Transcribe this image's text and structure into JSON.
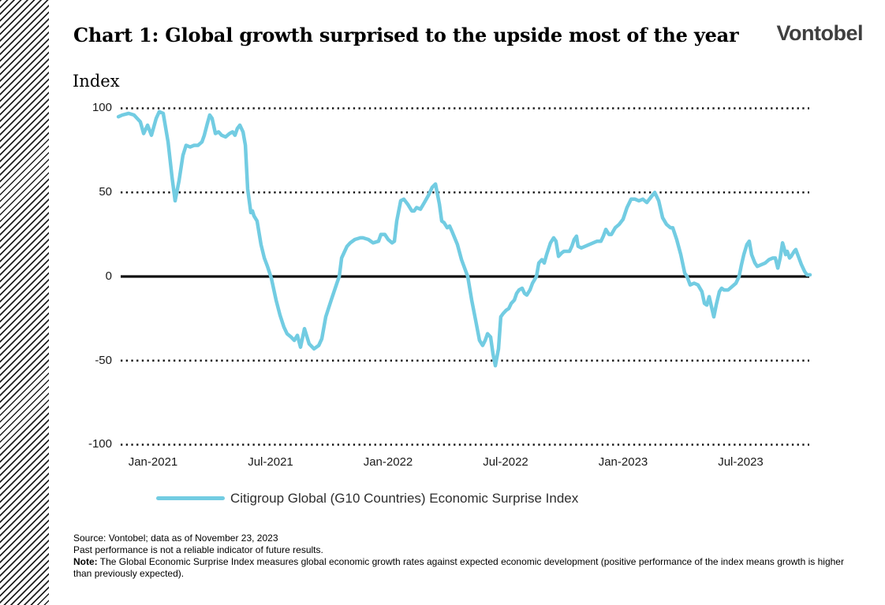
{
  "header": {
    "title": "Chart 1: Global growth surprised to the upside most of the year",
    "logo": "Vontobel",
    "logo_color": "#3f3f3f"
  },
  "chart_data": {
    "type": "line",
    "title": "Chart 1: Global growth surprised to the upside most of the year",
    "ylabel": "Index",
    "xlabel": "",
    "ylim": [
      -100,
      100
    ],
    "y_ticks": [
      "100",
      "50",
      "0",
      "-50",
      "-100"
    ],
    "y_tick_values": [
      100,
      50,
      0,
      -50,
      -100
    ],
    "x_ticks": [
      "Jan-2021",
      "Jul-2021",
      "Jan-2022",
      "Jul-2022",
      "Jan-2023",
      "Jul-2023"
    ],
    "x_tick_months": [
      0,
      6,
      12,
      18,
      24,
      30
    ],
    "x_unit": "months since Jan-2021 (decimal)",
    "grid": "horizontal dotted at 100, 50, -50, -100; solid black zero line",
    "legend_position": "bottom",
    "gridline_color": "#141414",
    "zero_line_color": "#111111",
    "series": [
      {
        "name": "Citigroup Global (G10 Countries) Economic Surprise Index",
        "color": "#72cce2",
        "points": [
          [
            -1.77,
            95
          ],
          [
            -1.57,
            96
          ],
          [
            -1.25,
            97
          ],
          [
            -0.97,
            96
          ],
          [
            -0.65,
            92
          ],
          [
            -0.48,
            85
          ],
          [
            -0.28,
            90
          ],
          [
            -0.08,
            84
          ],
          [
            0.16,
            94
          ],
          [
            0.32,
            98
          ],
          [
            0.52,
            97
          ],
          [
            0.77,
            80
          ],
          [
            0.97,
            59
          ],
          [
            1.13,
            45
          ],
          [
            1.33,
            57
          ],
          [
            1.53,
            72
          ],
          [
            1.69,
            78
          ],
          [
            1.9,
            77
          ],
          [
            2.1,
            78
          ],
          [
            2.3,
            78
          ],
          [
            2.5,
            80
          ],
          [
            2.62,
            84
          ],
          [
            2.78,
            91
          ],
          [
            2.9,
            96
          ],
          [
            3.02,
            94
          ],
          [
            3.19,
            85
          ],
          [
            3.35,
            86
          ],
          [
            3.51,
            84
          ],
          [
            3.71,
            83
          ],
          [
            3.91,
            85
          ],
          [
            4.07,
            86
          ],
          [
            4.19,
            84
          ],
          [
            4.31,
            88
          ],
          [
            4.44,
            90
          ],
          [
            4.6,
            86
          ],
          [
            4.72,
            78
          ],
          [
            4.84,
            52
          ],
          [
            5,
            38
          ],
          [
            5.08,
            39
          ],
          [
            5.16,
            36
          ],
          [
            5.32,
            33
          ],
          [
            5.52,
            19
          ],
          [
            5.69,
            11
          ],
          [
            5.85,
            6
          ],
          [
            6.05,
            -1
          ],
          [
            6.29,
            -14
          ],
          [
            6.49,
            -23
          ],
          [
            6.69,
            -30
          ],
          [
            6.85,
            -34
          ],
          [
            7.06,
            -36
          ],
          [
            7.22,
            -38
          ],
          [
            7.38,
            -35
          ],
          [
            7.54,
            -42
          ],
          [
            7.74,
            -31
          ],
          [
            7.98,
            -40
          ],
          [
            8.23,
            -43
          ],
          [
            8.47,
            -41
          ],
          [
            8.63,
            -37
          ],
          [
            8.83,
            -24
          ],
          [
            9.11,
            -14
          ],
          [
            9.4,
            -4
          ],
          [
            9.52,
            0
          ],
          [
            9.64,
            11
          ],
          [
            9.8,
            15
          ],
          [
            9.92,
            18
          ],
          [
            10.08,
            20
          ],
          [
            10.32,
            22
          ],
          [
            10.6,
            23
          ],
          [
            10.73,
            23
          ],
          [
            11.01,
            22
          ],
          [
            11.25,
            20
          ],
          [
            11.53,
            21
          ],
          [
            11.65,
            25
          ],
          [
            11.85,
            25
          ],
          [
            12.02,
            22
          ],
          [
            12.22,
            20
          ],
          [
            12.34,
            21
          ],
          [
            12.46,
            33
          ],
          [
            12.66,
            45
          ],
          [
            12.82,
            46
          ],
          [
            13.02,
            43
          ],
          [
            13.23,
            39
          ],
          [
            13.35,
            39
          ],
          [
            13.47,
            41
          ],
          [
            13.67,
            40
          ],
          [
            13.87,
            44
          ],
          [
            14.07,
            48
          ],
          [
            14.27,
            53
          ],
          [
            14.44,
            55
          ],
          [
            14.64,
            43
          ],
          [
            14.76,
            33
          ],
          [
            14.88,
            32
          ],
          [
            15.04,
            29
          ],
          [
            15.16,
            30
          ],
          [
            15.28,
            27
          ],
          [
            15.56,
            19
          ],
          [
            15.77,
            10
          ],
          [
            16.09,
            0
          ],
          [
            16.29,
            -14
          ],
          [
            16.49,
            -26
          ],
          [
            16.69,
            -38
          ],
          [
            16.85,
            -41
          ],
          [
            16.98,
            -38
          ],
          [
            17.1,
            -34
          ],
          [
            17.26,
            -36
          ],
          [
            17.38,
            -46
          ],
          [
            17.5,
            -53
          ],
          [
            17.66,
            -43
          ],
          [
            17.78,
            -24
          ],
          [
            17.9,
            -22
          ],
          [
            18.06,
            -20
          ],
          [
            18.19,
            -19
          ],
          [
            18.31,
            -16
          ],
          [
            18.47,
            -14
          ],
          [
            18.59,
            -10
          ],
          [
            18.71,
            -8
          ],
          [
            18.87,
            -7
          ],
          [
            18.99,
            -10
          ],
          [
            19.11,
            -11
          ],
          [
            19.27,
            -8
          ],
          [
            19.4,
            -4
          ],
          [
            19.6,
            0
          ],
          [
            19.72,
            8
          ],
          [
            19.88,
            10
          ],
          [
            20,
            8
          ],
          [
            20.12,
            13
          ],
          [
            20.32,
            20
          ],
          [
            20.48,
            23
          ],
          [
            20.6,
            21
          ],
          [
            20.73,
            12
          ],
          [
            20.89,
            14
          ],
          [
            21.01,
            15
          ],
          [
            21.13,
            15
          ],
          [
            21.29,
            15
          ],
          [
            21.41,
            18
          ],
          [
            21.53,
            22
          ],
          [
            21.65,
            24
          ],
          [
            21.73,
            18
          ],
          [
            21.9,
            17
          ],
          [
            22.1,
            18
          ],
          [
            22.3,
            19
          ],
          [
            22.5,
            20
          ],
          [
            22.7,
            21
          ],
          [
            22.9,
            21
          ],
          [
            23.02,
            24
          ],
          [
            23.15,
            28
          ],
          [
            23.31,
            25
          ],
          [
            23.43,
            25
          ],
          [
            23.63,
            29
          ],
          [
            23.83,
            31
          ],
          [
            24.03,
            34
          ],
          [
            24.23,
            41
          ],
          [
            24.44,
            46
          ],
          [
            24.64,
            46
          ],
          [
            24.84,
            45
          ],
          [
            25.04,
            46
          ],
          [
            25.24,
            44
          ],
          [
            25.44,
            47
          ],
          [
            25.65,
            50
          ],
          [
            25.85,
            45
          ],
          [
            26.05,
            35
          ],
          [
            26.25,
            31
          ],
          [
            26.45,
            29
          ],
          [
            26.57,
            29
          ],
          [
            26.77,
            22
          ],
          [
            26.98,
            13
          ],
          [
            27.18,
            2
          ],
          [
            27.3,
            0
          ],
          [
            27.46,
            -5
          ],
          [
            27.66,
            -4
          ],
          [
            27.86,
            -5
          ],
          [
            28.06,
            -9
          ],
          [
            28.19,
            -16
          ],
          [
            28.31,
            -17
          ],
          [
            28.43,
            -12
          ],
          [
            28.59,
            -20
          ],
          [
            28.67,
            -24
          ],
          [
            28.79,
            -17
          ],
          [
            28.95,
            -9
          ],
          [
            29.07,
            -7
          ],
          [
            29.19,
            -8
          ],
          [
            29.4,
            -8
          ],
          [
            29.6,
            -6
          ],
          [
            29.8,
            -4
          ],
          [
            29.96,
            0
          ],
          [
            30.08,
            7
          ],
          [
            30.2,
            13
          ],
          [
            30.36,
            19
          ],
          [
            30.48,
            21
          ],
          [
            30.6,
            13
          ],
          [
            30.77,
            8
          ],
          [
            30.89,
            6
          ],
          [
            31.09,
            7
          ],
          [
            31.29,
            8
          ],
          [
            31.49,
            10
          ],
          [
            31.69,
            11
          ],
          [
            31.81,
            11
          ],
          [
            31.94,
            5
          ],
          [
            32.06,
            11
          ],
          [
            32.18,
            20
          ],
          [
            32.26,
            17
          ],
          [
            32.34,
            13
          ],
          [
            32.42,
            15
          ],
          [
            32.54,
            11
          ],
          [
            32.62,
            12
          ],
          [
            32.78,
            15
          ],
          [
            32.86,
            16
          ],
          [
            33.02,
            11
          ],
          [
            33.15,
            7
          ],
          [
            33.31,
            3
          ],
          [
            33.43,
            1
          ],
          [
            33.59,
            1
          ]
        ]
      }
    ]
  },
  "legend": {
    "label": "Citigroup Global (G10 Countries) Economic Surprise Index"
  },
  "footer": {
    "source": "Source: Vontobel; data as of November 23, 2023",
    "disclaimer": "Past performance is not a reliable indicator of future results.",
    "note_label": "Note:",
    "note_text": "The Global Economic Surprise Index measures global economic growth rates against expected economic development (positive performance of the index means growth is higher than previously expected)."
  }
}
